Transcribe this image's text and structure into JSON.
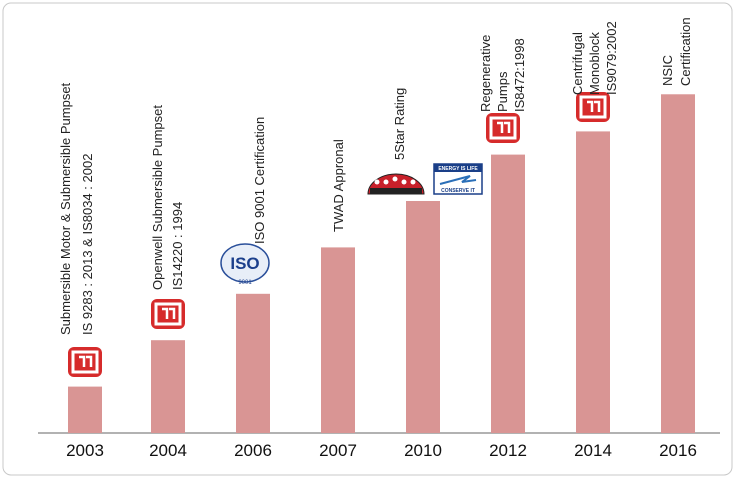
{
  "chart_data": {
    "type": "bar",
    "categories": [
      "2003",
      "2004",
      "2006",
      "2007",
      "2010",
      "2012",
      "2014",
      "2016"
    ],
    "values": [
      1,
      2,
      3,
      4,
      5,
      6,
      6.5,
      7.3
    ],
    "color": "#d99594",
    "annotations": [
      {
        "lines": [
          "Submersible Motor & Submersible Pumpset",
          "IS 9283 : 2013 & IS8034 : 2002"
        ]
      },
      {
        "lines": [
          "Openwell Submersible Pumpset",
          "IS14220 : 1994"
        ]
      },
      {
        "lines": [
          "ISO 9001 Certification"
        ]
      },
      {
        "lines": [
          "TWAD Appronal"
        ]
      },
      {
        "lines": [
          "5Star Rating"
        ]
      },
      {
        "lines": [
          "Regenerative",
          "Pumps",
          "IS8472:1998"
        ]
      },
      {
        "lines": [
          "Centrifugal",
          "Monoblock",
          "IS9079:2002"
        ]
      },
      {
        "lines": [
          "NSIC",
          "Certification"
        ]
      }
    ],
    "logo_texts": {
      "iso": "ISO",
      "iso_number": "9001",
      "energy_top": "ENERGY IS LIFE",
      "energy_bottom": "CONSERVE IT"
    }
  }
}
